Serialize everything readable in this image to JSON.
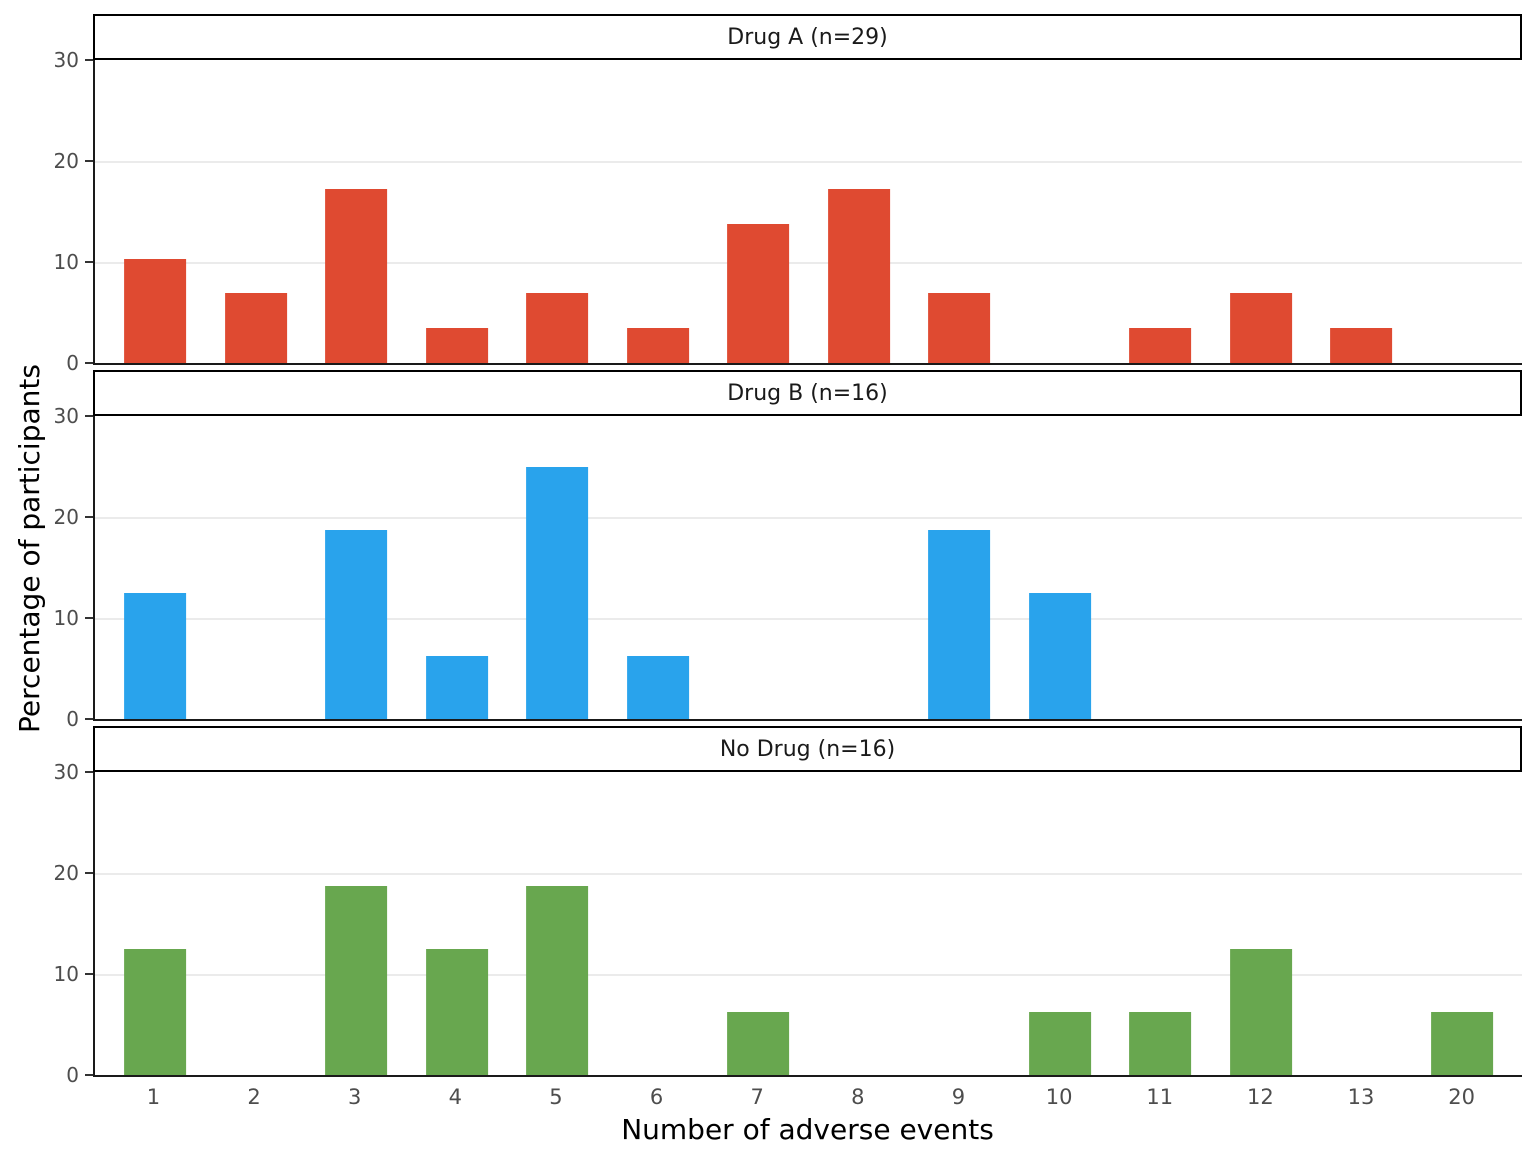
{
  "chart_data": {
    "type": "bar",
    "title": "",
    "xlabel": "Number of adverse events",
    "ylabel": "Percentage of participants",
    "categories": [
      "1",
      "2",
      "3",
      "4",
      "5",
      "6",
      "7",
      "8",
      "9",
      "10",
      "11",
      "12",
      "13",
      "20"
    ],
    "ylim": [
      0,
      30
    ],
    "yticks": [
      0,
      10,
      20,
      30
    ],
    "grid": "horizontal-major-only",
    "legend": "none",
    "facet_layout": "stacked-rows",
    "facets": [
      {
        "label": "Drug A (n=29)",
        "color": "#df4a31",
        "values": [
          10.34,
          6.9,
          17.24,
          3.45,
          6.9,
          3.45,
          13.79,
          17.24,
          6.9,
          0,
          3.45,
          6.9,
          3.45,
          0
        ]
      },
      {
        "label": "Drug B (n=16)",
        "color": "#29a3ec",
        "values": [
          12.5,
          0,
          18.75,
          6.25,
          25,
          6.25,
          0,
          0,
          18.75,
          12.5,
          0,
          0,
          0,
          0
        ]
      },
      {
        "label": "No Drug (n=16)",
        "color": "#68a74f",
        "values": [
          12.5,
          0,
          18.75,
          12.5,
          18.75,
          0,
          6.25,
          0,
          0,
          6.25,
          6.25,
          12.5,
          0,
          6.25
        ]
      }
    ],
    "style": {
      "grid_color": "#ebebeb",
      "axis_color": "#1a1a1a",
      "tick_label_color": "#4d4d4d",
      "strip_border_color": "#000000",
      "strip_text_color": "#1a1a1a",
      "background": "#ffffff"
    }
  }
}
